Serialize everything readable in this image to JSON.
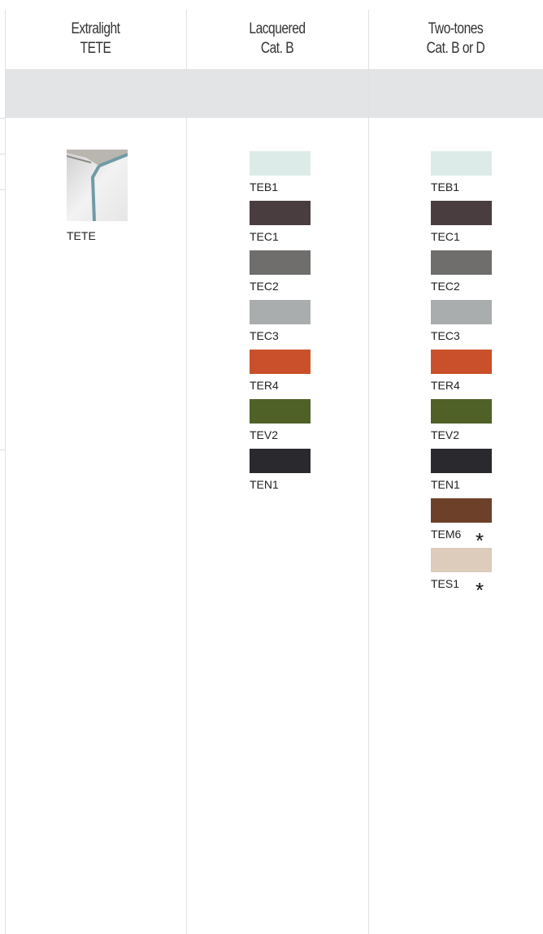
{
  "columns": [
    {
      "header": [
        "Extralight",
        "TETE"
      ],
      "items": [
        {
          "code": "TETE",
          "kind": "image"
        }
      ]
    },
    {
      "header": [
        "Lacquered",
        "Cat. B"
      ],
      "items": [
        {
          "code": "TEB1",
          "color": "#dcebe7"
        },
        {
          "code": "TEC1",
          "color": "#4a3d3f"
        },
        {
          "code": "TEC2",
          "color": "#6f6e6c"
        },
        {
          "code": "TEC3",
          "color": "#a9adae"
        },
        {
          "code": "TER4",
          "color": "#c9502a"
        },
        {
          "code": "TEV2",
          "color": "#4f6127"
        },
        {
          "code": "TEN1",
          "color": "#2a2a2e"
        }
      ]
    },
    {
      "header": [
        "Two-tones",
        "Cat. B or D"
      ],
      "items": [
        {
          "code": "TEB1",
          "color": "#dcebe7"
        },
        {
          "code": "TEC1",
          "color": "#4a3d3f"
        },
        {
          "code": "TEC2",
          "color": "#6f6e6c"
        },
        {
          "code": "TEC3",
          "color": "#a9adae"
        },
        {
          "code": "TER4",
          "color": "#c9502a"
        },
        {
          "code": "TEV2",
          "color": "#4f6127"
        },
        {
          "code": "TEN1",
          "color": "#2a2a2e"
        },
        {
          "code": "TEM6",
          "color": "#6d4029",
          "note": "*"
        },
        {
          "code": "TES1",
          "color": "#ddcbbb",
          "note": "*"
        }
      ]
    }
  ]
}
